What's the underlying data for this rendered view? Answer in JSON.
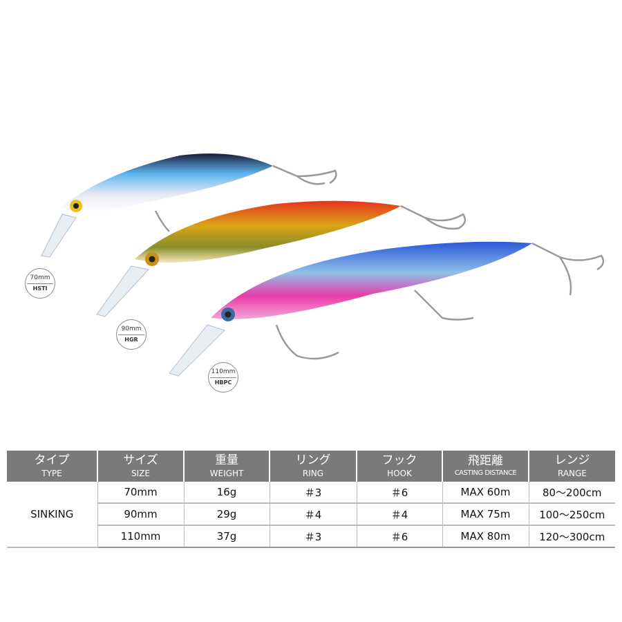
{
  "lures": [
    {
      "size": "70mm",
      "code": "HSTI",
      "colors": [
        "#1a1f3a",
        "#5db5f0",
        "#e8e8f2"
      ]
    },
    {
      "size": "90mm",
      "code": "HGR",
      "colors": [
        "#e8321e",
        "#d9a516",
        "#f4e9c0"
      ]
    },
    {
      "size": "110mm",
      "code": "HBPC",
      "colors": [
        "#2a58d8",
        "#e93ba9",
        "#f2a8d6"
      ]
    }
  ],
  "table": {
    "headers": [
      {
        "jp": "タイプ",
        "en": "TYPE"
      },
      {
        "jp": "サイズ",
        "en": "SIZE"
      },
      {
        "jp": "重量",
        "en": "WEIGHT"
      },
      {
        "jp": "リング",
        "en": "RING"
      },
      {
        "jp": "フック",
        "en": "HOOK"
      },
      {
        "jp": "飛距離",
        "en": "CASTING DISTANCE"
      },
      {
        "jp": "レンジ",
        "en": "RANGE"
      }
    ],
    "type": "SINKING",
    "rows": [
      {
        "size": "70mm",
        "weight": "16g",
        "ring": "＃3",
        "hook": "＃6",
        "distance": "MAX 60m",
        "range": "80～200cm"
      },
      {
        "size": "90mm",
        "weight": "29g",
        "ring": "＃4",
        "hook": "＃4",
        "distance": "MAX 75m",
        "range": "100～250cm"
      },
      {
        "size": "110mm",
        "weight": "37g",
        "ring": "＃3",
        "hook": "＃6",
        "distance": "MAX 80m",
        "range": "120～300cm"
      }
    ],
    "header_color": "#7a7b79"
  }
}
